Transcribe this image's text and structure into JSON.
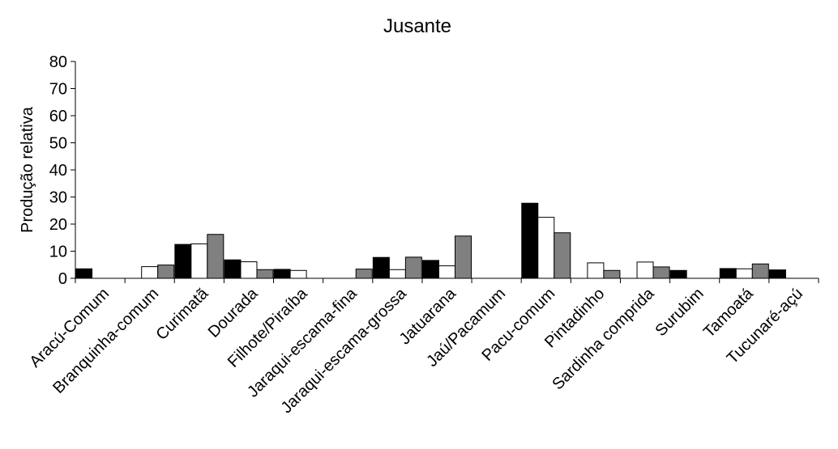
{
  "chart_data": {
    "type": "bar",
    "title": "Jusante",
    "xlabel": "",
    "ylabel": "Produção relativa",
    "ylim": [
      0,
      80
    ],
    "yticks": [
      0,
      10,
      20,
      30,
      40,
      50,
      60,
      70,
      80
    ],
    "grid": false,
    "legend": "none",
    "categories": [
      "Aracú-Comum",
      "Branquinha-comum",
      "Curimatã",
      "Dourada",
      "Filhote/Piraíba",
      "Jaraqui-escama-fina",
      "Jaraqui-escama-grossa",
      "Jatuarana",
      "Jaú/Pacamum",
      "Pacu-comum",
      "Pintadinho",
      "Sardinha comprida",
      "Surubim",
      "Tamoatá",
      "Tucunaré-açú"
    ],
    "series": [
      {
        "color": "#000000",
        "values": [
          3.5,
          0,
          12.5,
          6.8,
          3.3,
          0,
          7.7,
          6.6,
          0,
          27.7,
          0,
          0,
          2.9,
          3.6,
          3.1
        ]
      },
      {
        "color": "#ffffff",
        "values": [
          0,
          4.3,
          12.7,
          6.1,
          2.9,
          0,
          3.2,
          4.6,
          0,
          22.5,
          5.7,
          6.0,
          0,
          3.5,
          0
        ]
      },
      {
        "color": "#808080",
        "values": [
          0,
          4.9,
          16.2,
          3.2,
          0,
          3.4,
          7.8,
          15.6,
          0,
          16.8,
          2.9,
          4.2,
          0,
          5.3,
          0
        ]
      }
    ]
  }
}
